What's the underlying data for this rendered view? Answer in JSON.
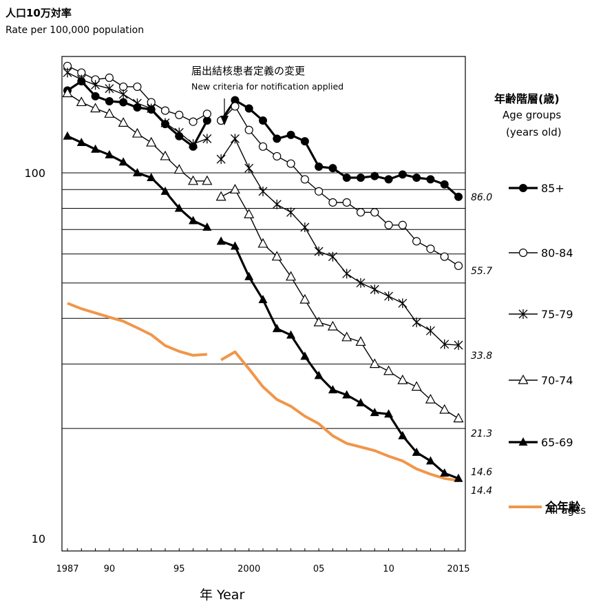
{
  "y_axis_label_ja": "人口10万対率",
  "y_axis_label_en": "Rate per 100,000  population",
  "x_axis_label": "年  Year",
  "annotation_ja": "届出結核患者定義の変更",
  "annotation_en": "New criteria for notification applied",
  "legend_title_ja": "年齢階層(歳)",
  "legend_title_en1": "Age groups",
  "legend_title_en2": "(years old)",
  "legend_all_ages_en": "All ages",
  "chart_data": {
    "type": "line",
    "y_scale": "log",
    "ylim": [
      10,
      200
    ],
    "xlim": [
      1987,
      2015
    ],
    "y_tick_labels": [
      "100",
      "10"
    ],
    "x_tick_labels": [
      {
        "x": 1987,
        "label": "1987"
      },
      {
        "x": 1990,
        "label": "90"
      },
      {
        "x": 1995,
        "label": "95"
      },
      {
        "x": 2000,
        "label": "2000"
      },
      {
        "x": 2005,
        "label": "05"
      },
      {
        "x": 2010,
        "label": "10"
      },
      {
        "x": 2015,
        "label": "2015"
      }
    ],
    "grid": "horizontal",
    "series": [
      {
        "name": "85+",
        "marker": "filled-circle",
        "color": "#000000",
        "width": 3.2,
        "end_label": "86.0",
        "segments": [
          {
            "x": [
              1987,
              1988,
              1989,
              1990,
              1991,
              1992,
              1993,
              1994,
              1995,
              1996,
              1997
            ],
            "y": [
              168,
              178,
              162,
              157,
              156,
              151,
              149,
              136,
              126,
              118,
              139
            ]
          },
          {
            "x": [
              1998,
              1999,
              2000,
              2001,
              2002,
              2003,
              2004,
              2005,
              2006,
              2007,
              2008,
              2009,
              2010,
              2011,
              2012,
              2013,
              2014,
              2015
            ],
            "y": [
              139,
              158,
              150,
              139,
              124,
              127,
              122,
              104,
              103,
              97,
              97,
              98,
              96,
              99,
              97,
              96,
              93,
              86.0
            ]
          }
        ]
      },
      {
        "name": "80-84",
        "marker": "open-circle",
        "color": "#000000",
        "width": 1.4,
        "end_label": "55.7",
        "segments": [
          {
            "x": [
              1987,
              1988,
              1989,
              1990,
              1991,
              1992,
              1993,
              1994,
              1995,
              1996,
              1997
            ],
            "y": [
              196,
              188,
              180,
              182,
              172,
              172,
              156,
              148,
              144,
              138,
              145
            ]
          },
          {
            "x": [
              1998,
              1999,
              2000,
              2001,
              2002,
              2003,
              2004,
              2005,
              2006,
              2007,
              2008,
              2009,
              2010,
              2011,
              2012,
              2013,
              2014,
              2015
            ],
            "y": [
              139,
              152,
              131,
              118,
              111,
              106,
              96,
              89,
              83,
              83,
              78,
              78,
              72,
              72,
              65,
              62,
              59,
              55.7
            ]
          }
        ]
      },
      {
        "name": "75-79",
        "marker": "asterisk",
        "color": "#000000",
        "width": 1.4,
        "end_label": "33.8",
        "segments": [
          {
            "x": [
              1987,
              1988,
              1989,
              1990,
              1991,
              1992,
              1993,
              1994,
              1995,
              1996,
              1997
            ],
            "y": [
              188,
              180,
              174,
              170,
              164,
              155,
              150,
              137,
              129,
              120,
              124
            ]
          },
          {
            "x": [
              1998,
              1999,
              2000,
              2001,
              2002,
              2003,
              2004,
              2005,
              2006,
              2007,
              2008,
              2009,
              2010,
              2011,
              2012,
              2013,
              2014,
              2015
            ],
            "y": [
              109,
              124,
              103,
              89,
              82,
              78,
              71,
              61,
              59,
              53,
              50,
              48,
              46,
              44,
              39,
              37,
              34,
              33.8
            ]
          }
        ]
      },
      {
        "name": "70-74",
        "marker": "open-triangle",
        "color": "#000000",
        "width": 1.4,
        "end_label": "21.3",
        "segments": [
          {
            "x": [
              1987,
              1988,
              1989,
              1990,
              1991,
              1992,
              1993,
              1994,
              1995,
              1996,
              1997
            ],
            "y": [
              165,
              156,
              150,
              145,
              137,
              128,
              121,
              111,
              102,
              95,
              95
            ]
          },
          {
            "x": [
              1998,
              1999,
              2000,
              2001,
              2002,
              2003,
              2004,
              2005,
              2006,
              2007,
              2008,
              2009,
              2010,
              2011,
              2012,
              2013,
              2014,
              2015
            ],
            "y": [
              86,
              90,
              77,
              64,
              59,
              52,
              45,
              39,
              38,
              35.5,
              34.5,
              30,
              28.7,
              27.1,
              26,
              24,
              22.5,
              21.3
            ]
          }
        ]
      },
      {
        "name": "65-69",
        "marker": "filled-triangle",
        "color": "#000000",
        "width": 3.2,
        "end_label": "14.6",
        "segments": [
          {
            "x": [
              1987,
              1988,
              1989,
              1990,
              1991,
              1992,
              1993,
              1994,
              1995,
              1996,
              1997
            ],
            "y": [
              126,
              121,
              116,
              112,
              107,
              100,
              97,
              89,
              80,
              74,
              71
            ]
          },
          {
            "x": [
              1998,
              1999,
              2000,
              2001,
              2002,
              2003,
              2004,
              2005,
              2006,
              2007,
              2008,
              2009,
              2010,
              2011,
              2012,
              2013,
              2014,
              2015
            ],
            "y": [
              65,
              63,
              52,
              45,
              37.5,
              36,
              31.5,
              27.9,
              25.5,
              24.7,
              23.5,
              22.1,
              21.9,
              19.1,
              17.2,
              16.3,
              15.1,
              14.6
            ]
          }
        ]
      },
      {
        "name": "全年齢",
        "marker": "none",
        "color": "#f0964a",
        "width": 4,
        "end_label": "14.4",
        "segments": [
          {
            "x": [
              1987,
              1988,
              1989,
              1990,
              1991,
              1992,
              1993,
              1994,
              1995,
              1996,
              1997
            ],
            "y": [
              44.0,
              42.5,
              41.4,
              40.3,
              39.3,
              37.7,
              36.1,
              33.7,
              32.5,
              31.7,
              31.9
            ]
          },
          {
            "x": [
              1998,
              1999,
              2000,
              2001,
              2002,
              2003,
              2004,
              2005,
              2006,
              2007,
              2008,
              2009,
              2010,
              2011,
              2012,
              2013,
              2014,
              2015
            ],
            "y": [
              30.8,
              32.4,
              29.1,
              26.0,
              24.0,
              23.0,
              21.6,
              20.6,
              19.1,
              18.2,
              17.8,
              17.4,
              16.8,
              16.3,
              15.5,
              15.0,
              14.6,
              14.4
            ]
          }
        ]
      }
    ]
  }
}
